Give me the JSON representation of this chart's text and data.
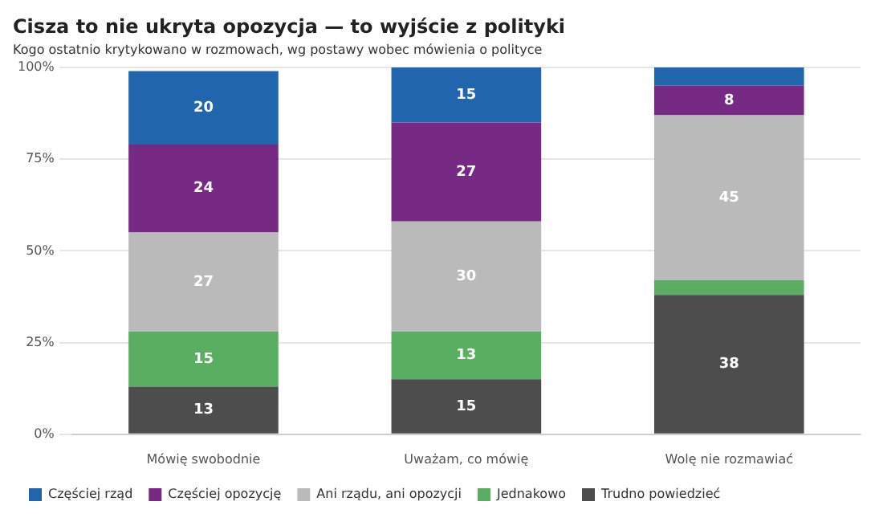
{
  "chart_data": {
    "type": "bar",
    "stacked": true,
    "title": "Cisza to nie ukryta opozycja — to wyjście z polityki",
    "subtitle": "Kogo ostatnio krytykowano w rozmowach, wg postawy wobec mówienia o polityce",
    "categories": [
      "Mówię swobodnie",
      "Uważam, co mówię",
      "Wolę nie rozmawiać"
    ],
    "series": [
      {
        "name": "Trudno powiedzieć",
        "color": "#4d4d4d",
        "values": [
          13,
          15,
          38
        ],
        "value_labels": [
          "13",
          "15",
          "38"
        ]
      },
      {
        "name": "Jednakowo",
        "color": "#5aae61",
        "values": [
          15,
          13,
          4
        ],
        "value_labels": [
          "15",
          "13",
          null
        ]
      },
      {
        "name": "Ani rządu, ani opozycji",
        "color": "#bababa",
        "values": [
          27,
          30,
          45
        ],
        "value_labels": [
          "27",
          "30",
          "45"
        ]
      },
      {
        "name": "Częściej opozycję",
        "color": "#762a83",
        "values": [
          24,
          27,
          8
        ],
        "value_labels": [
          "24",
          "27",
          "8"
        ]
      },
      {
        "name": "Częściej rząd",
        "color": "#2166ac",
        "values": [
          20,
          15,
          5
        ],
        "value_labels": [
          "20",
          "15",
          null
        ]
      }
    ],
    "ylim": [
      0,
      100
    ],
    "yticks": [
      {
        "value": 0,
        "label": "0%"
      },
      {
        "value": 25,
        "label": "25%"
      },
      {
        "value": 50,
        "label": "50%"
      },
      {
        "value": 75,
        "label": "75%"
      },
      {
        "value": 100,
        "label": "100%"
      }
    ],
    "grid": "y",
    "legend": "bottom left"
  }
}
